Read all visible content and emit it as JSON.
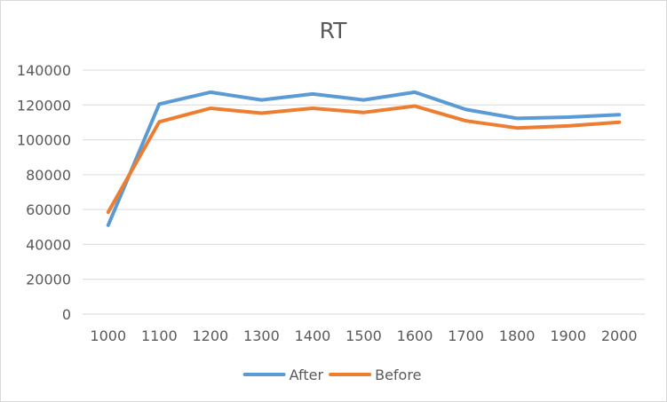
{
  "chart_data": {
    "type": "line",
    "title": "RT",
    "xlabel": "",
    "ylabel": "",
    "categories": [
      "1000",
      "1100",
      "1200",
      "1300",
      "1400",
      "1500",
      "1600",
      "1700",
      "1800",
      "1900",
      "2000"
    ],
    "ylim": [
      0,
      140000
    ],
    "yticks": [
      "0",
      "20000",
      "40000",
      "60000",
      "80000",
      "100000",
      "120000",
      "140000"
    ],
    "grid": true,
    "legend_position": "bottom",
    "series": [
      {
        "name": "After",
        "color": "#5b9bd5",
        "values": [
          51000,
          120500,
          127300,
          122900,
          126300,
          122900,
          127300,
          117400,
          112300,
          113000,
          114400
        ]
      },
      {
        "name": "Before",
        "color": "#ed7d31",
        "values": [
          58500,
          110300,
          118100,
          115300,
          118100,
          115700,
          119400,
          110900,
          106800,
          108000,
          110100
        ]
      }
    ]
  }
}
